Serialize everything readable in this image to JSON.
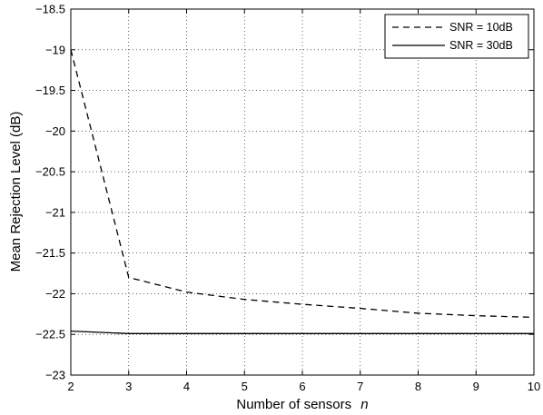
{
  "chart_data": {
    "type": "line",
    "title": "",
    "xlabel": "Number of sensors",
    "xlabel_var": "n",
    "ylabel": "Mean Rejection Level (dB)",
    "xlim": [
      2,
      10
    ],
    "ylim": [
      -23,
      -18.5
    ],
    "xticks": [
      2,
      3,
      4,
      5,
      6,
      7,
      8,
      9,
      10
    ],
    "yticks": [
      -23,
      -22.5,
      -22,
      -21.5,
      -21,
      -20.5,
      -20,
      -19.5,
      -19,
      -18.5
    ],
    "xtick_labels": [
      "2",
      "3",
      "4",
      "5",
      "6",
      "7",
      "8",
      "9",
      "10"
    ],
    "ytick_labels": [
      "−23",
      "−22.5",
      "−22",
      "−21.5",
      "−21",
      "−20.5",
      "−20",
      "−19.5",
      "−19",
      "−18.5"
    ],
    "grid": true,
    "legend_position": "top-right",
    "x": [
      2,
      3,
      4,
      5,
      6,
      7,
      8,
      9,
      10
    ],
    "series": [
      {
        "name": "SNR = 10dB",
        "style": "dashed",
        "color": "#000000",
        "values": [
          -19.0,
          -21.8,
          -21.98,
          -22.07,
          -22.13,
          -22.18,
          -22.24,
          -22.27,
          -22.29
        ]
      },
      {
        "name": "SNR = 30dB",
        "style": "solid",
        "color": "#000000",
        "values": [
          -22.46,
          -22.49,
          -22.49,
          -22.49,
          -22.49,
          -22.49,
          -22.49,
          -22.49,
          -22.49
        ]
      }
    ]
  }
}
